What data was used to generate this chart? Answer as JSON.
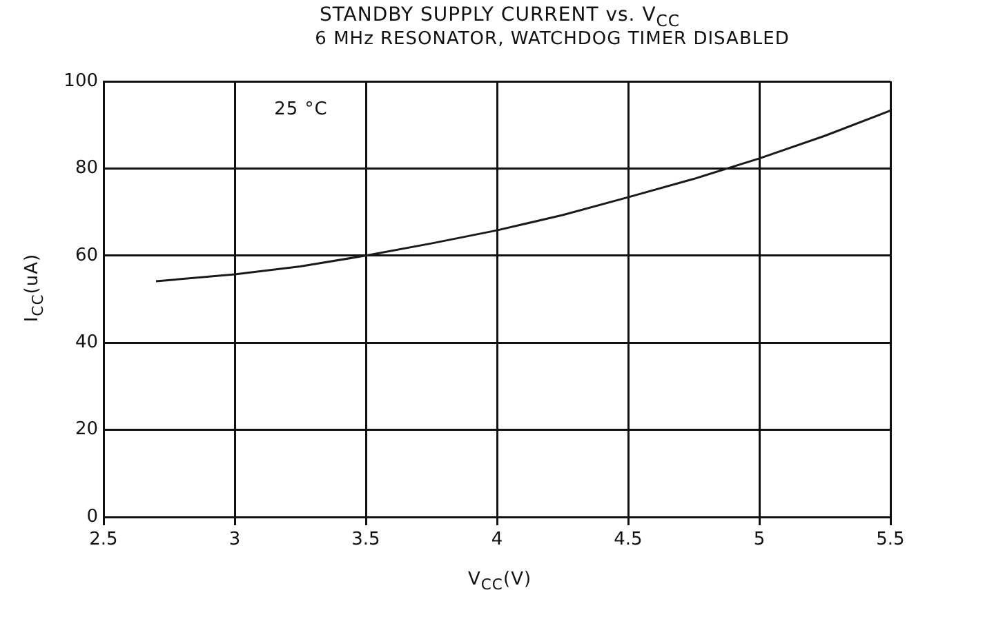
{
  "chart_data": {
    "type": "line",
    "title": "STANDBY SUPPLY CURRENT vs. V$_{CC}$",
    "subtitle": "6 MHz RESONATOR, WATCHDOG TIMER DISABLED",
    "xlabel": "V$_{CC}$(V)",
    "ylabel": "I$_{CC}$(uA)",
    "annotations": [
      "25 °C"
    ],
    "x": [
      2.7,
      3.0,
      3.25,
      3.5,
      3.75,
      4.0,
      4.25,
      4.5,
      4.75,
      5.0,
      5.25,
      5.5
    ],
    "series": [
      {
        "color": "#1a1a1a",
        "values": [
          54.1,
          55.7,
          57.5,
          60,
          62.8,
          65.8,
          69.3,
          73.4,
          77.6,
          82.3,
          87.5,
          93.3
        ]
      }
    ],
    "xlim": [
      2.5,
      5.5
    ],
    "xticks": [
      2.5,
      3,
      3.5,
      4,
      4.5,
      5,
      5.5
    ],
    "ylim": [
      0,
      100
    ],
    "yticks": [
      0,
      20,
      40,
      60,
      80,
      100
    ],
    "grid": true,
    "legend": false,
    "marker": "none",
    "line_style": "solid"
  }
}
